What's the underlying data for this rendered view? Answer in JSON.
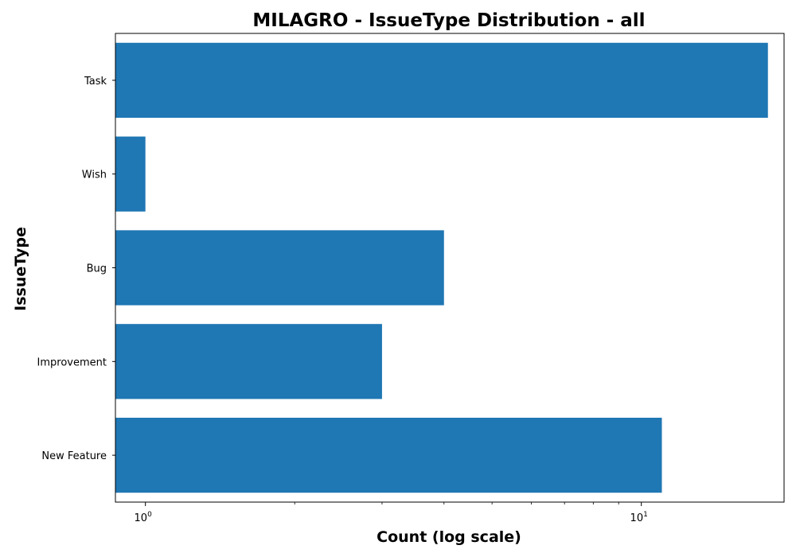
{
  "chart_data": {
    "type": "bar",
    "orientation": "horizontal",
    "title": "MILAGRO - IssueType Distribution - all",
    "xlabel": "Count (log scale)",
    "ylabel": "IssueType",
    "x_scale": "log",
    "xlim": [
      0.87,
      19.4
    ],
    "x_major_ticks": [
      {
        "value": 1,
        "base": "10",
        "exp": "0"
      },
      {
        "value": 10,
        "base": "10",
        "exp": "1"
      }
    ],
    "x_minor_ticks": [
      2,
      3,
      4,
      5,
      6,
      7,
      8,
      9
    ],
    "categories": [
      "New Feature",
      "Improvement",
      "Bug",
      "Wish",
      "Task"
    ],
    "values": [
      11,
      3,
      4,
      1,
      18
    ],
    "bar_color": "#1f77b4",
    "grid": false,
    "legend": "none"
  }
}
